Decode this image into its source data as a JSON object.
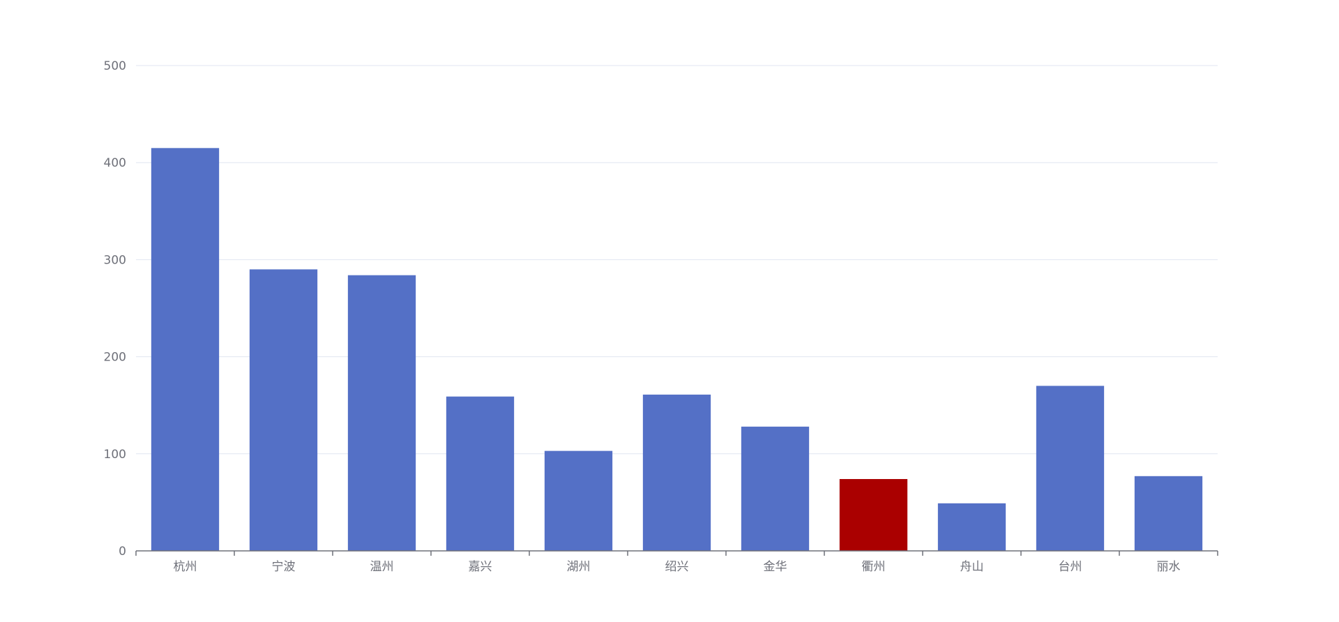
{
  "chart_data": {
    "type": "bar",
    "categories": [
      "杭州",
      "宁波",
      "温州",
      "嘉兴",
      "湖州",
      "绍兴",
      "金华",
      "衢州",
      "舟山",
      "台州",
      "丽水"
    ],
    "values": [
      415,
      290,
      284,
      159,
      103,
      161,
      128,
      74,
      49,
      170,
      77
    ],
    "highlight_index": 7,
    "ylim": [
      0,
      500
    ],
    "yticks": [
      0,
      100,
      200,
      300,
      400,
      500
    ],
    "grid": true,
    "legend": "none",
    "colors": {
      "bar": "#5470c6",
      "highlight": "#aa0000",
      "grid": "#e0e6f1",
      "axis": "#6e7079",
      "label": "#6e7079"
    }
  }
}
